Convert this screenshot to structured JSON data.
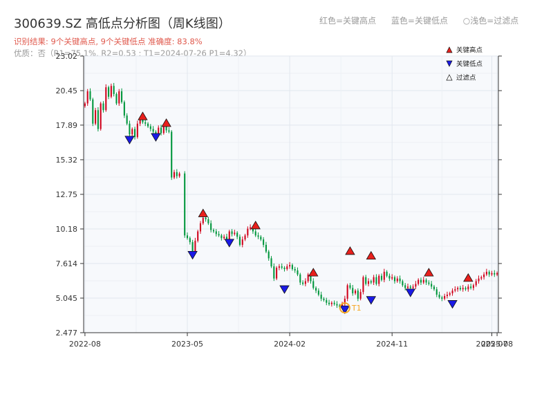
{
  "header": {
    "title": "300639.SZ 高低点分析图（周K线图）",
    "result_line": "识别结果: 9个关键高点, 9个关键低点  准确度: 83.8%",
    "quality_line": "优质：否（R1=75.1%, R2=0.53 ; T1=2024-07-26 P1=4.32）"
  },
  "top_legend": {
    "red": "红色=关键高点",
    "blue": "蓝色=关键低点",
    "light": "○浅色=过滤点"
  },
  "colors": {
    "up": "#d0021b",
    "down": "#00963c",
    "high_marker": "#e8201c",
    "low_marker": "#1a1ae6",
    "t1_marker": "#f5a623",
    "plot_bg": "#f7f9fc",
    "grid": "#e1e6ee"
  },
  "chart_data": {
    "type": "candlestick",
    "yticks": [
      "2.477",
      "5.045",
      "7.614",
      "10.18",
      "12.75",
      "15.32",
      "17.89",
      "20.45",
      "23.02"
    ],
    "ylim": [
      2.477,
      23.02
    ],
    "xticks": [
      {
        "label": "2022-08",
        "value": 0
      },
      {
        "label": "2023-05",
        "value": 39
      },
      {
        "label": "2024-02",
        "value": 78
      },
      {
        "label": "2024-11",
        "value": 117
      },
      {
        "label": "2025-07",
        "value": 155
      },
      {
        "label": "2025-08",
        "value": 157
      }
    ],
    "xlim": [
      -0.5,
      157.5
    ],
    "series": [
      {
        "x": 0,
        "c": 19.5
      },
      {
        "x": 1,
        "c": 20.4
      },
      {
        "x": 2,
        "c": 19.8
      },
      {
        "x": 3,
        "c": 18.0
      },
      {
        "x": 4,
        "c": 19.0
      },
      {
        "x": 5,
        "c": 17.6
      },
      {
        "x": 6,
        "c": 19.5
      },
      {
        "x": 7,
        "c": 19.0
      },
      {
        "x": 8,
        "c": 20.7
      },
      {
        "x": 9,
        "c": 20.0
      },
      {
        "x": 10,
        "c": 20.8
      },
      {
        "x": 11,
        "c": 20.2
      },
      {
        "x": 12,
        "c": 19.5
      },
      {
        "x": 13,
        "c": 20.4
      },
      {
        "x": 14,
        "c": 19.6
      },
      {
        "x": 15,
        "c": 18.6
      },
      {
        "x": 16,
        "c": 18.0
      },
      {
        "x": 17,
        "c": 17.2
      },
      {
        "x": 18,
        "c": 17.6
      },
      {
        "x": 19,
        "c": 17.0
      },
      {
        "x": 20,
        "c": 18.0
      },
      {
        "x": 21,
        "c": 18.3
      },
      {
        "x": 22,
        "c": 18.1
      },
      {
        "x": 23,
        "c": 18.0
      },
      {
        "x": 24,
        "c": 17.8
      },
      {
        "x": 25,
        "c": 17.6
      },
      {
        "x": 26,
        "c": 17.4
      },
      {
        "x": 27,
        "c": 17.2
      },
      {
        "x": 28,
        "c": 17.7
      },
      {
        "x": 29,
        "c": 17.3
      },
      {
        "x": 30,
        "c": 17.8
      },
      {
        "x": 31,
        "c": 17.5
      },
      {
        "x": 32,
        "c": 17.4
      },
      {
        "x": 33,
        "c": 14.0
      },
      {
        "x": 34,
        "c": 14.4
      },
      {
        "x": 35,
        "c": 14.1
      },
      {
        "x": 36,
        "c": 14.3
      },
      {
        "x": 38,
        "c": 9.7
      },
      {
        "x": 39,
        "c": 9.5
      },
      {
        "x": 40,
        "c": 9.2
      },
      {
        "x": 41,
        "c": 8.5
      },
      {
        "x": 42,
        "c": 9.3
      },
      {
        "x": 43,
        "c": 10.0
      },
      {
        "x": 44,
        "c": 10.6
      },
      {
        "x": 45,
        "c": 11.0
      },
      {
        "x": 46,
        "c": 10.9
      },
      {
        "x": 47,
        "c": 10.6
      },
      {
        "x": 48,
        "c": 10.1
      },
      {
        "x": 49,
        "c": 10.0
      },
      {
        "x": 50,
        "c": 9.8
      },
      {
        "x": 51,
        "c": 9.7
      },
      {
        "x": 52,
        "c": 9.5
      },
      {
        "x": 53,
        "c": 9.6
      },
      {
        "x": 54,
        "c": 9.3
      },
      {
        "x": 55,
        "c": 10.0
      },
      {
        "x": 56,
        "c": 9.8
      },
      {
        "x": 57,
        "c": 9.9
      },
      {
        "x": 58,
        "c": 9.6
      },
      {
        "x": 59,
        "c": 9.0
      },
      {
        "x": 60,
        "c": 9.4
      },
      {
        "x": 61,
        "c": 9.7
      },
      {
        "x": 62,
        "c": 10.2
      },
      {
        "x": 63,
        "c": 10.3
      },
      {
        "x": 64,
        "c": 10.0
      },
      {
        "x": 65,
        "c": 9.7
      },
      {
        "x": 66,
        "c": 9.6
      },
      {
        "x": 67,
        "c": 9.4
      },
      {
        "x": 68,
        "c": 9.0
      },
      {
        "x": 69,
        "c": 8.5
      },
      {
        "x": 70,
        "c": 8.0
      },
      {
        "x": 71,
        "c": 7.4
      },
      {
        "x": 72,
        "c": 6.5
      },
      {
        "x": 73,
        "c": 7.3
      },
      {
        "x": 74,
        "c": 7.4
      },
      {
        "x": 75,
        "c": 7.3
      },
      {
        "x": 76,
        "c": 7.2
      },
      {
        "x": 77,
        "c": 7.4
      },
      {
        "x": 78,
        "c": 7.5
      },
      {
        "x": 79,
        "c": 7.2
      },
      {
        "x": 80,
        "c": 7.1
      },
      {
        "x": 81,
        "c": 6.8
      },
      {
        "x": 82,
        "c": 6.2
      },
      {
        "x": 83,
        "c": 6.1
      },
      {
        "x": 84,
        "c": 6.3
      },
      {
        "x": 85,
        "c": 6.8
      },
      {
        "x": 86,
        "c": 6.3
      },
      {
        "x": 87,
        "c": 5.8
      },
      {
        "x": 88,
        "c": 5.6
      },
      {
        "x": 89,
        "c": 5.3
      },
      {
        "x": 90,
        "c": 5.0
      },
      {
        "x": 91,
        "c": 4.9
      },
      {
        "x": 92,
        "c": 4.7
      },
      {
        "x": 93,
        "c": 4.6
      },
      {
        "x": 94,
        "c": 4.7
      },
      {
        "x": 95,
        "c": 4.6
      },
      {
        "x": 96,
        "c": 4.5
      },
      {
        "x": 97,
        "c": 4.4
      },
      {
        "x": 98,
        "c": 4.6
      },
      {
        "x": 99,
        "c": 5.0
      },
      {
        "x": 100,
        "c": 6.0
      },
      {
        "x": 101,
        "c": 5.8
      },
      {
        "x": 102,
        "c": 5.4
      },
      {
        "x": 103,
        "c": 5.6
      },
      {
        "x": 104,
        "c": 5.0
      },
      {
        "x": 105,
        "c": 5.5
      },
      {
        "x": 106,
        "c": 6.6
      },
      {
        "x": 107,
        "c": 6.1
      },
      {
        "x": 108,
        "c": 6.3
      },
      {
        "x": 109,
        "c": 6.2
      },
      {
        "x": 110,
        "c": 6.6
      },
      {
        "x": 111,
        "c": 6.1
      },
      {
        "x": 112,
        "c": 6.7
      },
      {
        "x": 113,
        "c": 6.4
      },
      {
        "x": 114,
        "c": 7.0
      },
      {
        "x": 115,
        "c": 6.7
      },
      {
        "x": 116,
        "c": 6.5
      },
      {
        "x": 117,
        "c": 6.6
      },
      {
        "x": 118,
        "c": 6.3
      },
      {
        "x": 119,
        "c": 6.5
      },
      {
        "x": 120,
        "c": 6.3
      },
      {
        "x": 121,
        "c": 6.0
      },
      {
        "x": 122,
        "c": 5.8
      },
      {
        "x": 123,
        "c": 5.9
      },
      {
        "x": 124,
        "c": 5.8
      },
      {
        "x": 125,
        "c": 5.9
      },
      {
        "x": 126,
        "c": 6.1
      },
      {
        "x": 127,
        "c": 6.4
      },
      {
        "x": 128,
        "c": 6.2
      },
      {
        "x": 129,
        "c": 6.4
      },
      {
        "x": 130,
        "c": 6.2
      },
      {
        "x": 131,
        "c": 6.1
      },
      {
        "x": 132,
        "c": 5.9
      },
      {
        "x": 133,
        "c": 5.7
      },
      {
        "x": 134,
        "c": 5.3
      },
      {
        "x": 135,
        "c": 5.1
      },
      {
        "x": 136,
        "c": 5.0
      },
      {
        "x": 137,
        "c": 5.2
      },
      {
        "x": 138,
        "c": 5.3
      },
      {
        "x": 139,
        "c": 5.4
      },
      {
        "x": 140,
        "c": 5.6
      },
      {
        "x": 141,
        "c": 5.7
      },
      {
        "x": 142,
        "c": 5.8
      },
      {
        "x": 143,
        "c": 5.7
      },
      {
        "x": 144,
        "c": 5.8
      },
      {
        "x": 145,
        "c": 5.7
      },
      {
        "x": 146,
        "c": 5.9
      },
      {
        "x": 147,
        "c": 5.8
      },
      {
        "x": 148,
        "c": 6.0
      },
      {
        "x": 149,
        "c": 6.3
      },
      {
        "x": 150,
        "c": 6.5
      },
      {
        "x": 151,
        "c": 6.6
      },
      {
        "x": 152,
        "c": 6.8
      },
      {
        "x": 153,
        "c": 7.0
      },
      {
        "x": 154,
        "c": 6.8
      },
      {
        "x": 155,
        "c": 6.9
      },
      {
        "x": 156,
        "c": 6.8
      },
      {
        "x": 157,
        "c": 6.9
      }
    ],
    "key_highs": [
      {
        "x": 22,
        "y": 18.55
      },
      {
        "x": 31,
        "y": 18.05
      },
      {
        "x": 45,
        "y": 11.35
      },
      {
        "x": 65,
        "y": 10.45
      },
      {
        "x": 87,
        "y": 6.95
      },
      {
        "x": 101,
        "y": 8.55
      },
      {
        "x": 109,
        "y": 8.2
      },
      {
        "x": 131,
        "y": 6.95
      },
      {
        "x": 146,
        "y": 6.55
      }
    ],
    "key_lows": [
      {
        "x": 17,
        "y": 16.8
      },
      {
        "x": 27,
        "y": 17.0
      },
      {
        "x": 41,
        "y": 8.25
      },
      {
        "x": 55,
        "y": 9.15
      },
      {
        "x": 76,
        "y": 5.7
      },
      {
        "x": 99,
        "y": 4.2
      },
      {
        "x": 109,
        "y": 4.9
      },
      {
        "x": 124,
        "y": 5.45
      },
      {
        "x": 140,
        "y": 4.6
      }
    ],
    "t1": {
      "x": 99,
      "y": 4.32,
      "label": "T1"
    },
    "legend": {
      "high": "关键高点",
      "low": "关键低点",
      "filtered": "过滤点"
    }
  }
}
